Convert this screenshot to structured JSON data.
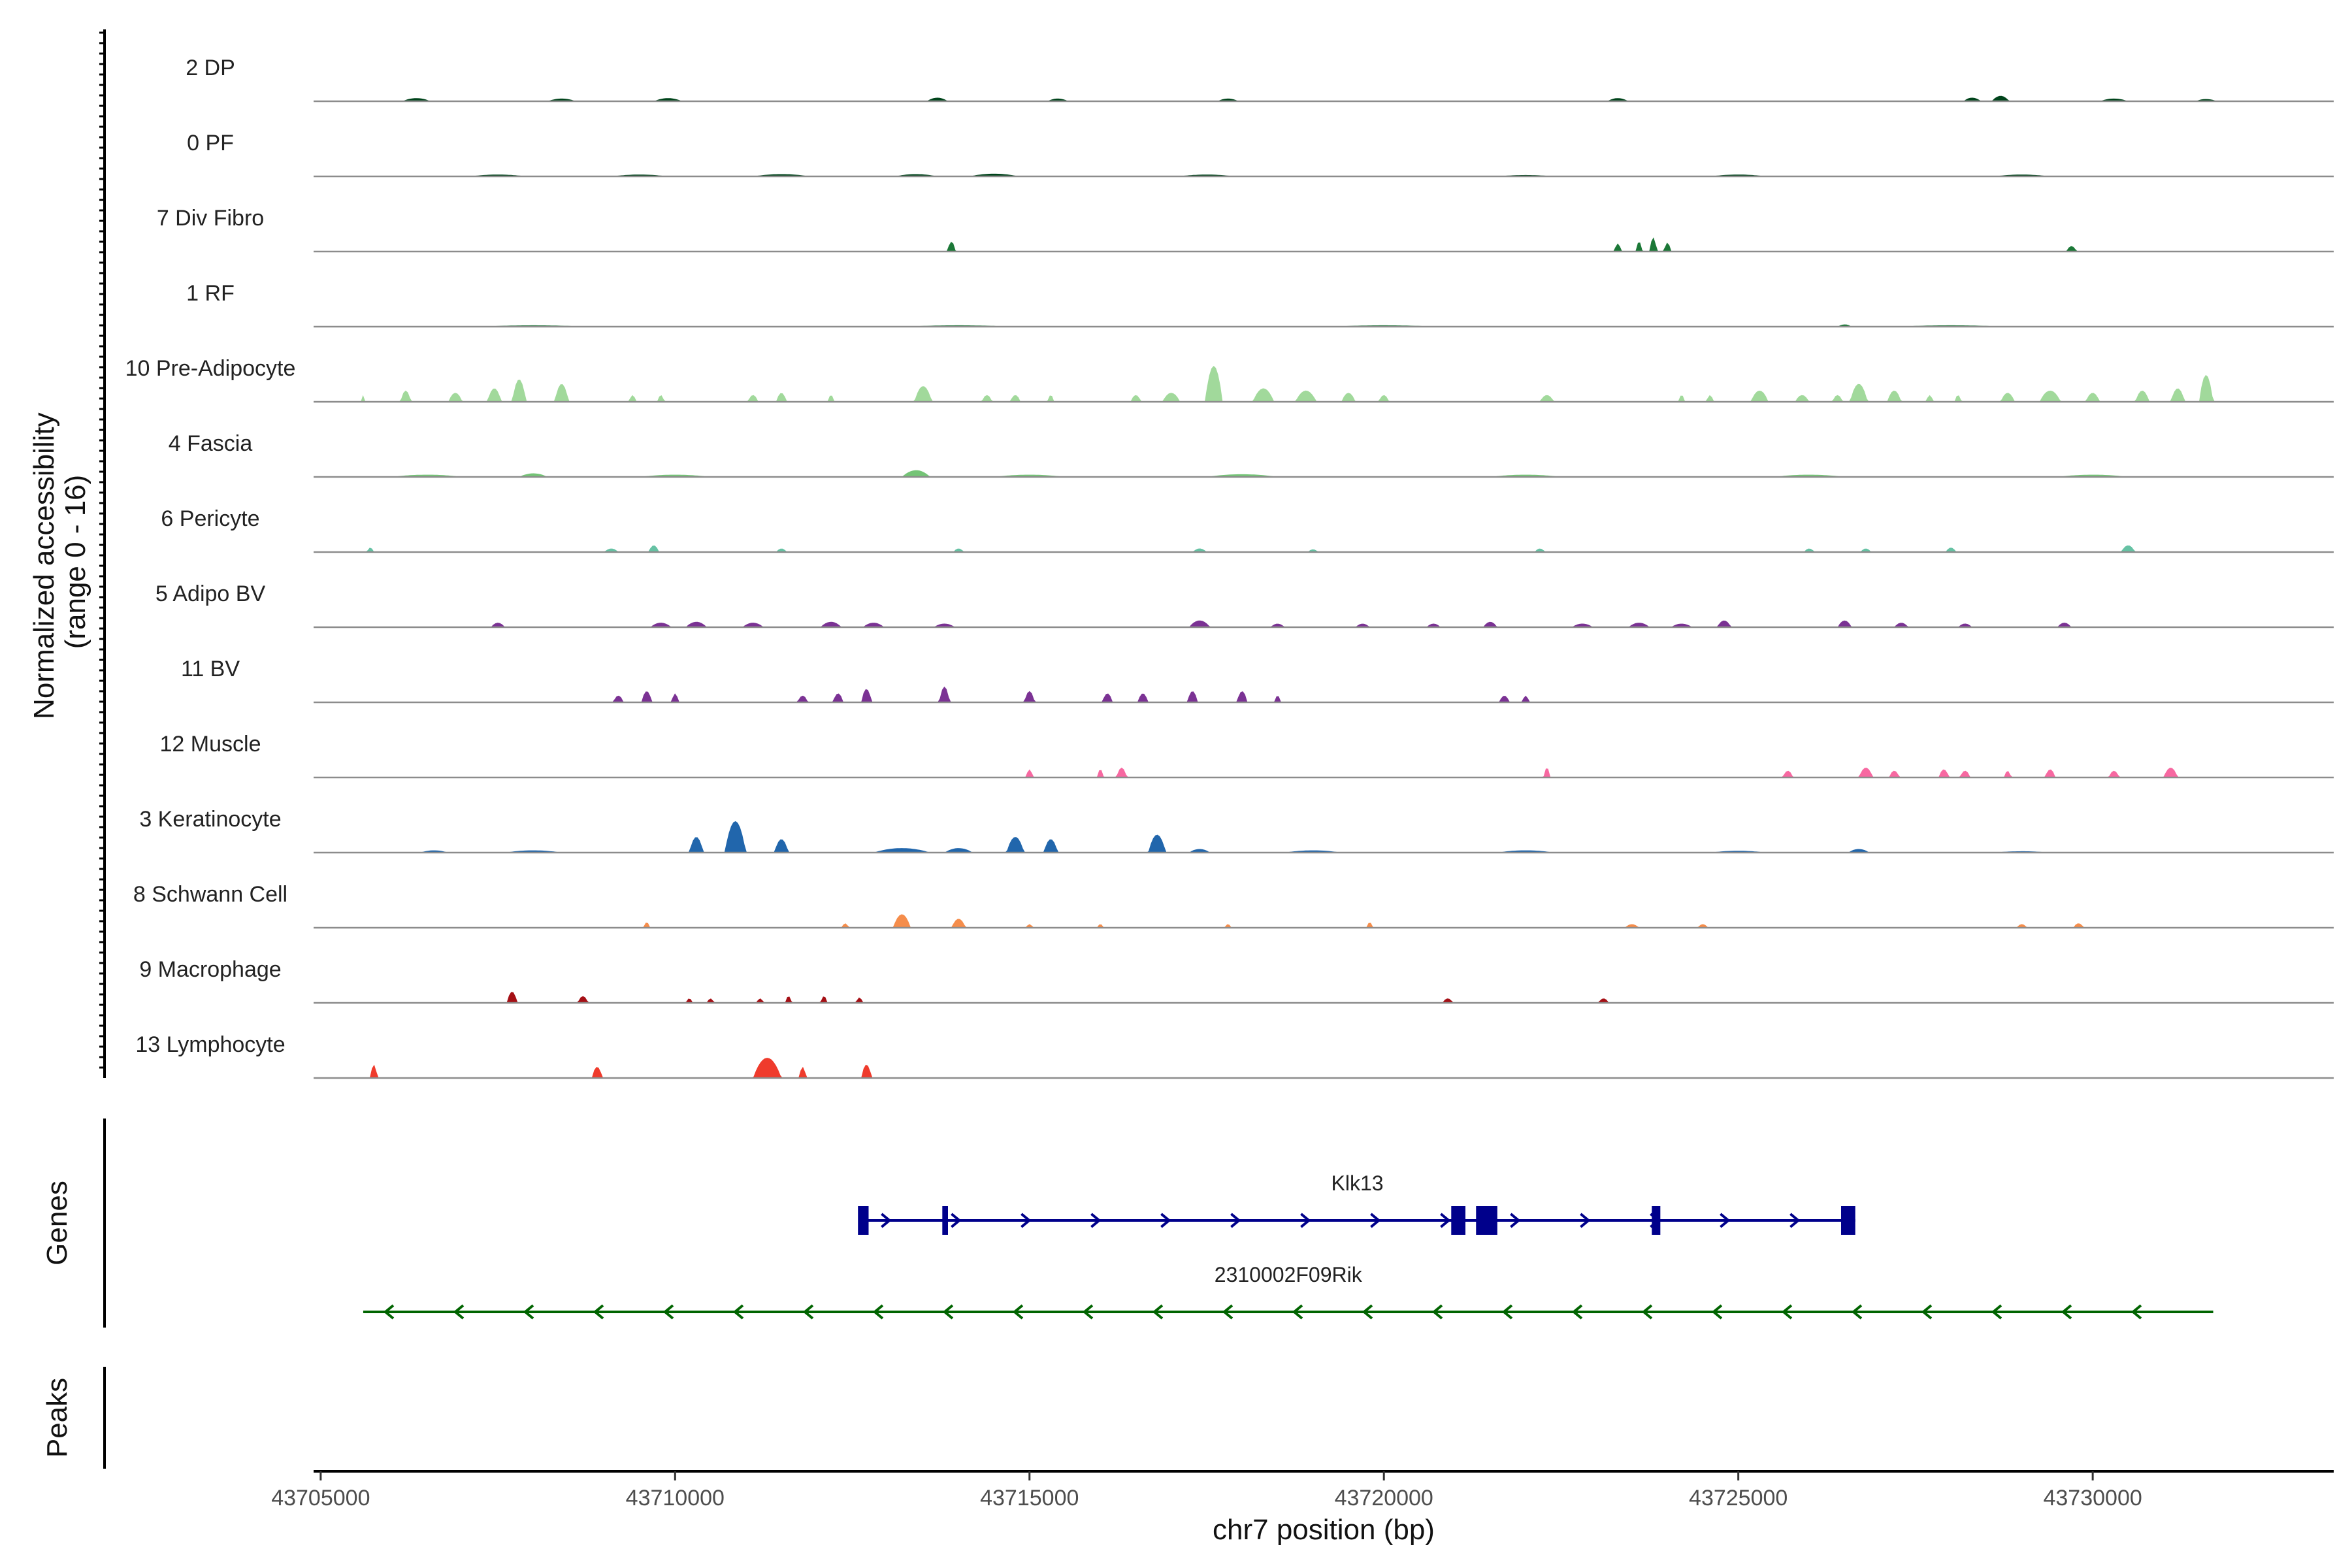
{
  "chart_data": {
    "type": "area",
    "title": "",
    "chromosome": "chr7",
    "xlabel": "chr7 position (bp)",
    "ylabel": "Normalized accessibility\n(range 0 - 16)",
    "ylim": [
      0,
      16
    ],
    "xlim": [
      43704900,
      43733400
    ],
    "x_ticks": [
      43705000,
      43710000,
      43715000,
      43720000,
      43725000,
      43730000
    ],
    "x_tick_labels": [
      "43705000",
      "43710000",
      "43715000",
      "43720000",
      "43725000",
      "43730000"
    ],
    "tracks_ylabel": "Normalized accessibility\n(range 0 - 16)",
    "genes_ylabel": "Genes",
    "peaks_ylabel": "Peaks",
    "series": [
      {
        "name": "2 DP",
        "color": "#00441b",
        "peaks": [
          [
            43706350,
            0.7,
            400
          ],
          [
            43708400,
            0.6,
            400
          ],
          [
            43709900,
            0.7,
            400
          ],
          [
            43713700,
            0.8,
            300
          ],
          [
            43715400,
            0.6,
            300
          ],
          [
            43717800,
            0.6,
            300
          ],
          [
            43723300,
            0.7,
            300
          ],
          [
            43728300,
            0.8,
            250
          ],
          [
            43728700,
            1.2,
            250
          ],
          [
            43730300,
            0.6,
            400
          ],
          [
            43731600,
            0.5,
            300
          ]
        ]
      },
      {
        "name": "0 PF",
        "color": "#00441b",
        "peaks": [
          [
            43707500,
            0.4,
            800
          ],
          [
            43709500,
            0.4,
            800
          ],
          [
            43711500,
            0.5,
            800
          ],
          [
            43713400,
            0.5,
            600
          ],
          [
            43714500,
            0.6,
            700
          ],
          [
            43717500,
            0.4,
            800
          ],
          [
            43722000,
            0.3,
            800
          ],
          [
            43725000,
            0.4,
            800
          ],
          [
            43729000,
            0.4,
            800
          ]
        ]
      },
      {
        "name": "7 Div Fibro",
        "color": "#1b7837",
        "peaks": [
          [
            43713900,
            2.2,
            120
          ],
          [
            43723300,
            1.8,
            100
          ],
          [
            43723600,
            2.2,
            100
          ],
          [
            43723800,
            3.2,
            100
          ],
          [
            43724000,
            2.0,
            100
          ],
          [
            43729700,
            1.2,
            150
          ]
        ]
      },
      {
        "name": "1 RF",
        "color": "#1b7837",
        "peaks": [
          [
            43708000,
            0.3,
            1500
          ],
          [
            43714000,
            0.3,
            1500
          ],
          [
            43720000,
            0.3,
            1500
          ],
          [
            43726500,
            0.5,
            200
          ],
          [
            43728000,
            0.3,
            1500
          ]
        ]
      },
      {
        "name": "10 Pre-Adipocyte",
        "color": "#a1d99b",
        "peaks": [
          [
            43705600,
            1.5,
            60
          ],
          [
            43706200,
            2.5,
            150
          ],
          [
            43706900,
            2.0,
            200
          ],
          [
            43707450,
            3.0,
            200
          ],
          [
            43707800,
            5.0,
            200
          ],
          [
            43708400,
            4.0,
            200
          ],
          [
            43709400,
            1.5,
            100
          ],
          [
            43709800,
            1.5,
            100
          ],
          [
            43711100,
            1.5,
            150
          ],
          [
            43711500,
            2.0,
            150
          ],
          [
            43712200,
            1.5,
            100
          ],
          [
            43713500,
            3.5,
            250
          ],
          [
            43714400,
            1.5,
            150
          ],
          [
            43714800,
            1.5,
            150
          ],
          [
            43715300,
            1.5,
            100
          ],
          [
            43716500,
            1.5,
            150
          ],
          [
            43717000,
            2.0,
            250
          ],
          [
            43717600,
            8.0,
            250
          ],
          [
            43718300,
            3.0,
            300
          ],
          [
            43718900,
            2.5,
            300
          ],
          [
            43719500,
            2.0,
            200
          ],
          [
            43720000,
            1.5,
            150
          ],
          [
            43722300,
            1.5,
            200
          ],
          [
            43724200,
            1.5,
            100
          ],
          [
            43724600,
            1.5,
            100
          ],
          [
            43725300,
            2.5,
            250
          ],
          [
            43725900,
            1.5,
            200
          ],
          [
            43726400,
            1.5,
            150
          ],
          [
            43726700,
            4.0,
            250
          ],
          [
            43727200,
            2.5,
            200
          ],
          [
            43727700,
            1.5,
            100
          ],
          [
            43728100,
            1.5,
            100
          ],
          [
            43728800,
            2.0,
            200
          ],
          [
            43729400,
            2.5,
            300
          ],
          [
            43730000,
            2.0,
            200
          ],
          [
            43730700,
            2.5,
            200
          ],
          [
            43731200,
            3.0,
            200
          ],
          [
            43731600,
            6.0,
            200
          ]
        ]
      },
      {
        "name": "4 Fascia",
        "color": "#74c476",
        "peaks": [
          [
            43706500,
            0.5,
            1000
          ],
          [
            43708000,
            0.8,
            400
          ],
          [
            43710000,
            0.5,
            1000
          ],
          [
            43713400,
            1.5,
            400
          ],
          [
            43715000,
            0.5,
            1000
          ],
          [
            43718000,
            0.6,
            1000
          ],
          [
            43722000,
            0.5,
            1000
          ],
          [
            43726000,
            0.5,
            1000
          ],
          [
            43730000,
            0.5,
            1000
          ]
        ]
      },
      {
        "name": "6 Pericyte",
        "color": "#66c2a4",
        "peaks": [
          [
            43705700,
            1.0,
            100
          ],
          [
            43709100,
            0.8,
            200
          ],
          [
            43709700,
            1.5,
            150
          ],
          [
            43711500,
            0.8,
            150
          ],
          [
            43714000,
            0.8,
            150
          ],
          [
            43717400,
            0.8,
            200
          ],
          [
            43719000,
            0.6,
            150
          ],
          [
            43722200,
            0.8,
            150
          ],
          [
            43726000,
            0.8,
            150
          ],
          [
            43726800,
            0.8,
            150
          ],
          [
            43728000,
            1.0,
            150
          ],
          [
            43730500,
            1.5,
            200
          ]
        ]
      },
      {
        "name": "5 Adipo BV",
        "color": "#7b3294",
        "peaks": [
          [
            43707500,
            1.0,
            200
          ],
          [
            43709800,
            1.0,
            300
          ],
          [
            43710300,
            1.2,
            300
          ],
          [
            43711100,
            1.0,
            300
          ],
          [
            43712200,
            1.2,
            300
          ],
          [
            43712800,
            1.0,
            300
          ],
          [
            43713800,
            0.8,
            300
          ],
          [
            43717400,
            1.5,
            300
          ],
          [
            43718500,
            0.8,
            200
          ],
          [
            43719700,
            0.8,
            200
          ],
          [
            43720700,
            0.8,
            200
          ],
          [
            43721500,
            1.2,
            200
          ],
          [
            43722800,
            0.8,
            300
          ],
          [
            43723600,
            1.0,
            300
          ],
          [
            43724200,
            0.8,
            300
          ],
          [
            43724800,
            1.5,
            200
          ],
          [
            43726500,
            1.5,
            200
          ],
          [
            43727300,
            1.0,
            200
          ],
          [
            43728200,
            0.8,
            200
          ],
          [
            43729600,
            1.0,
            200
          ]
        ]
      },
      {
        "name": "11 BV",
        "color": "#7b3294",
        "peaks": [
          [
            43709200,
            1.5,
            150
          ],
          [
            43709600,
            2.5,
            150
          ],
          [
            43710000,
            2.0,
            100
          ],
          [
            43711800,
            1.5,
            150
          ],
          [
            43712300,
            2.0,
            150
          ],
          [
            43712700,
            3.0,
            150
          ],
          [
            43713800,
            3.5,
            150
          ],
          [
            43715000,
            2.5,
            150
          ],
          [
            43716100,
            2.0,
            150
          ],
          [
            43716600,
            2.0,
            150
          ],
          [
            43717300,
            2.5,
            150
          ],
          [
            43718000,
            2.5,
            150
          ],
          [
            43718500,
            1.5,
            100
          ],
          [
            43721700,
            1.5,
            150
          ],
          [
            43722000,
            1.5,
            100
          ]
        ]
      },
      {
        "name": "12 Muscle",
        "color": "#f768a1",
        "peaks": [
          [
            43715000,
            1.8,
            100
          ],
          [
            43716000,
            1.8,
            100
          ],
          [
            43716300,
            2.2,
            150
          ],
          [
            43722300,
            2.2,
            100
          ],
          [
            43725700,
            1.5,
            150
          ],
          [
            43726800,
            2.2,
            200
          ],
          [
            43727200,
            1.5,
            150
          ],
          [
            43727900,
            1.8,
            150
          ],
          [
            43728200,
            1.5,
            150
          ],
          [
            43728800,
            1.5,
            100
          ],
          [
            43729400,
            1.8,
            150
          ],
          [
            43730300,
            1.5,
            150
          ],
          [
            43731100,
            2.2,
            200
          ]
        ]
      },
      {
        "name": "3 Keratinocyte",
        "color": "#2166ac",
        "peaks": [
          [
            43706600,
            0.5,
            400
          ],
          [
            43708000,
            0.5,
            800
          ],
          [
            43710300,
            3.5,
            200
          ],
          [
            43710850,
            7.0,
            300
          ],
          [
            43711500,
            3.0,
            200
          ],
          [
            43713200,
            1.0,
            800
          ],
          [
            43714000,
            1.0,
            400
          ],
          [
            43714800,
            3.5,
            250
          ],
          [
            43715300,
            3.0,
            200
          ],
          [
            43716800,
            4.0,
            250
          ],
          [
            43717400,
            0.8,
            300
          ],
          [
            43719000,
            0.5,
            800
          ],
          [
            43722000,
            0.5,
            800
          ],
          [
            43725000,
            0.4,
            800
          ],
          [
            43726700,
            0.8,
            300
          ],
          [
            43729000,
            0.3,
            800
          ]
        ]
      },
      {
        "name": "8 Schwann Cell",
        "color": "#f58d4b",
        "peaks": [
          [
            43709600,
            1.2,
            100
          ],
          [
            43712400,
            1.0,
            100
          ],
          [
            43713200,
            3.0,
            250
          ],
          [
            43714000,
            2.0,
            200
          ],
          [
            43715000,
            0.8,
            100
          ],
          [
            43716000,
            0.8,
            100
          ],
          [
            43717800,
            0.8,
            100
          ],
          [
            43719800,
            1.2,
            100
          ],
          [
            43723500,
            0.8,
            200
          ],
          [
            43724500,
            0.8,
            150
          ],
          [
            43729000,
            0.8,
            150
          ],
          [
            43729800,
            1.0,
            150
          ]
        ]
      },
      {
        "name": "9 Macrophage",
        "color": "#a50f15",
        "peaks": [
          [
            43707700,
            2.5,
            150
          ],
          [
            43708700,
            1.5,
            150
          ],
          [
            43710200,
            1.0,
            100
          ],
          [
            43710500,
            1.0,
            100
          ],
          [
            43711200,
            1.0,
            100
          ],
          [
            43711600,
            1.5,
            100
          ],
          [
            43712100,
            1.5,
            100
          ],
          [
            43712600,
            1.2,
            100
          ],
          [
            43720900,
            1.0,
            150
          ],
          [
            43723100,
            1.0,
            150
          ]
        ]
      },
      {
        "name": "13 Lymphocyte",
        "color": "#ef3b2c",
        "peaks": [
          [
            43705750,
            3.0,
            100
          ],
          [
            43708900,
            2.5,
            150
          ],
          [
            43711300,
            4.5,
            400
          ],
          [
            43711800,
            2.5,
            100
          ],
          [
            43712700,
            3.0,
            150
          ]
        ]
      }
    ],
    "genes": [
      {
        "name": "Klk13",
        "start": 43712600,
        "end": 43726650,
        "strand": "+",
        "color": "#00008b",
        "exons": [
          [
            43712580,
            43712730
          ],
          [
            43713770,
            43713850
          ],
          [
            43720950,
            43721150
          ],
          [
            43721300,
            43721600
          ],
          [
            43723780,
            43723900
          ],
          [
            43726450,
            43726650
          ]
        ]
      },
      {
        "name": "2310002F09Rik",
        "start": 43705600,
        "end": 43731700,
        "strand": "-",
        "color": "#006400",
        "exons": []
      }
    ]
  }
}
